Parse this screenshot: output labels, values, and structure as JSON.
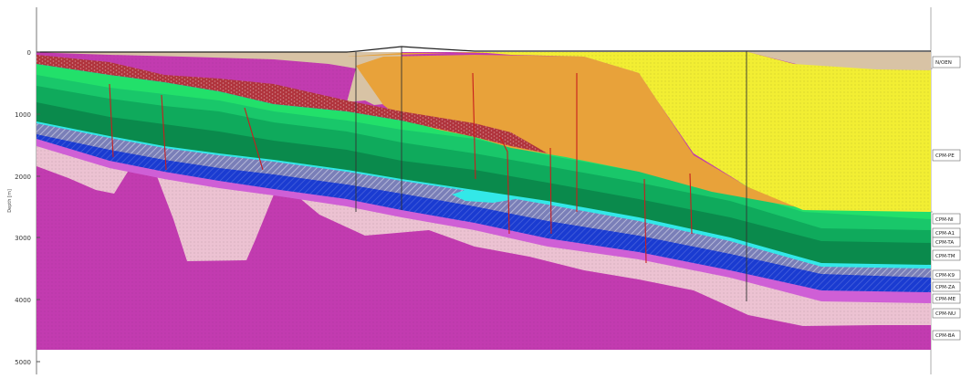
{
  "section": {
    "y_axis_label": "Depth [m]",
    "depth_ticks": [
      "0",
      "1000",
      "2000",
      "3000",
      "4000",
      "5000"
    ]
  },
  "formations": [
    {
      "key": "nieuw",
      "label": "N/OEN",
      "color": "#d8c3a5"
    },
    {
      "key": "ck",
      "label": "CPM-PE",
      "color": "#f2ee33"
    },
    {
      "key": "ckb",
      "label": "",
      "color": "#e8a23a"
    },
    {
      "key": "dr",
      "label": "",
      "color": "#b0333c"
    },
    {
      "key": "g1",
      "label": "CPM-NI",
      "color": "#22e06a"
    },
    {
      "key": "g2",
      "label": "CPM-A1",
      "color": "#19c76a"
    },
    {
      "key": "g3",
      "label": "CPM-TA",
      "color": "#0faa5c"
    },
    {
      "key": "g4",
      "label": "CPM-TM",
      "color": "#0a8a4c"
    },
    {
      "key": "cy",
      "label": "CPM-K9",
      "color": "#33e8e8"
    },
    {
      "key": "hat",
      "label": "CPM-ZA",
      "color": "#7a7fb8"
    },
    {
      "key": "bl",
      "label": "CPM-ME",
      "color": "#1a3bd1"
    },
    {
      "key": "vi",
      "label": "CPM-NU",
      "color": "#cf5fd6"
    },
    {
      "key": "pk",
      "label": "CPM-RO",
      "color": "#ecc2d2"
    },
    {
      "key": "mg",
      "label": "CPM-BA",
      "color": "#c23bb0"
    }
  ],
  "legend_colors": {
    "frame": "#555555",
    "fault": "#c81e1e",
    "well": "#333333"
  }
}
